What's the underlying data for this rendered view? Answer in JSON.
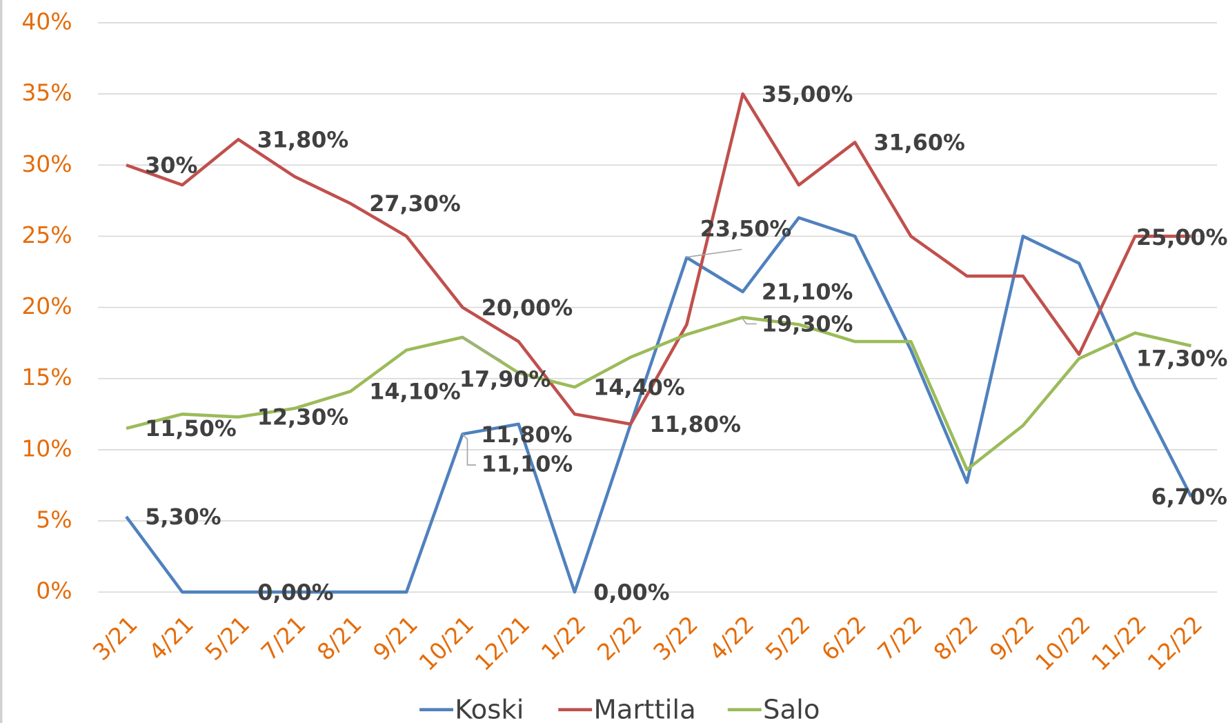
{
  "chart_data": {
    "type": "line",
    "categories": [
      "3/21",
      "4/21",
      "5/21",
      "7/21",
      "8/21",
      "9/21",
      "10/21",
      "12/21",
      "1/22",
      "2/22",
      "3/22",
      "4/22",
      "5/22",
      "6/22",
      "7/22",
      "8/22",
      "9/22",
      "10/22",
      "11/22",
      "12/22"
    ],
    "series": [
      {
        "name": "Koski",
        "color": "#4f81bd",
        "values": [
          5.3,
          0,
          0,
          0,
          0,
          0,
          11.1,
          11.8,
          0,
          11.8,
          23.5,
          21.1,
          26.3,
          25.0,
          17.0,
          7.7,
          25.0,
          23.1,
          14.4,
          6.7
        ],
        "value_labels": [
          "5,30%",
          null,
          null,
          "0,00%",
          null,
          null,
          "11,10%",
          "11,80%",
          "0,00%",
          null,
          "23,50%",
          "21,10%",
          null,
          null,
          null,
          null,
          null,
          null,
          null,
          "6,70%"
        ]
      },
      {
        "name": "Marttila",
        "color": "#c0504d",
        "values": [
          30,
          28.6,
          31.8,
          29.2,
          27.3,
          25.0,
          20.0,
          17.6,
          12.5,
          11.8,
          18.8,
          35.0,
          28.6,
          31.6,
          25.0,
          22.2,
          22.2,
          16.7,
          25.0,
          25.0
        ],
        "value_labels": [
          "30%",
          null,
          "31,80%",
          null,
          "27,30%",
          null,
          "20,00%",
          null,
          null,
          "11,80%",
          null,
          "35,00%",
          null,
          "31,60%",
          null,
          null,
          null,
          null,
          null,
          "25,00%"
        ]
      },
      {
        "name": "Salo",
        "color": "#9bbb59",
        "values": [
          11.5,
          12.5,
          12.3,
          12.9,
          14.1,
          17.0,
          17.9,
          15.4,
          14.4,
          16.5,
          18.1,
          19.3,
          18.8,
          17.6,
          17.6,
          8.6,
          11.7,
          16.4,
          18.2,
          17.3
        ],
        "value_labels": [
          "11,50%",
          null,
          "12,30%",
          null,
          "14,10%",
          null,
          "17,90%",
          null,
          "14,40%",
          null,
          null,
          "19,30%",
          null,
          null,
          null,
          null,
          null,
          null,
          null,
          "17,30%"
        ]
      }
    ],
    "ylim": [
      0,
      40
    ],
    "yticks": [
      {
        "value": 0,
        "label": "0%"
      },
      {
        "value": 5,
        "label": "5%"
      },
      {
        "value": 10,
        "label": "10%"
      },
      {
        "value": 15,
        "label": "15%"
      },
      {
        "value": 20,
        "label": "20%"
      },
      {
        "value": 25,
        "label": "25%"
      },
      {
        "value": 30,
        "label": "30%"
      },
      {
        "value": 35,
        "label": "35%"
      },
      {
        "value": 40,
        "label": "40%"
      }
    ],
    "grid": true,
    "legend": "bottom"
  }
}
